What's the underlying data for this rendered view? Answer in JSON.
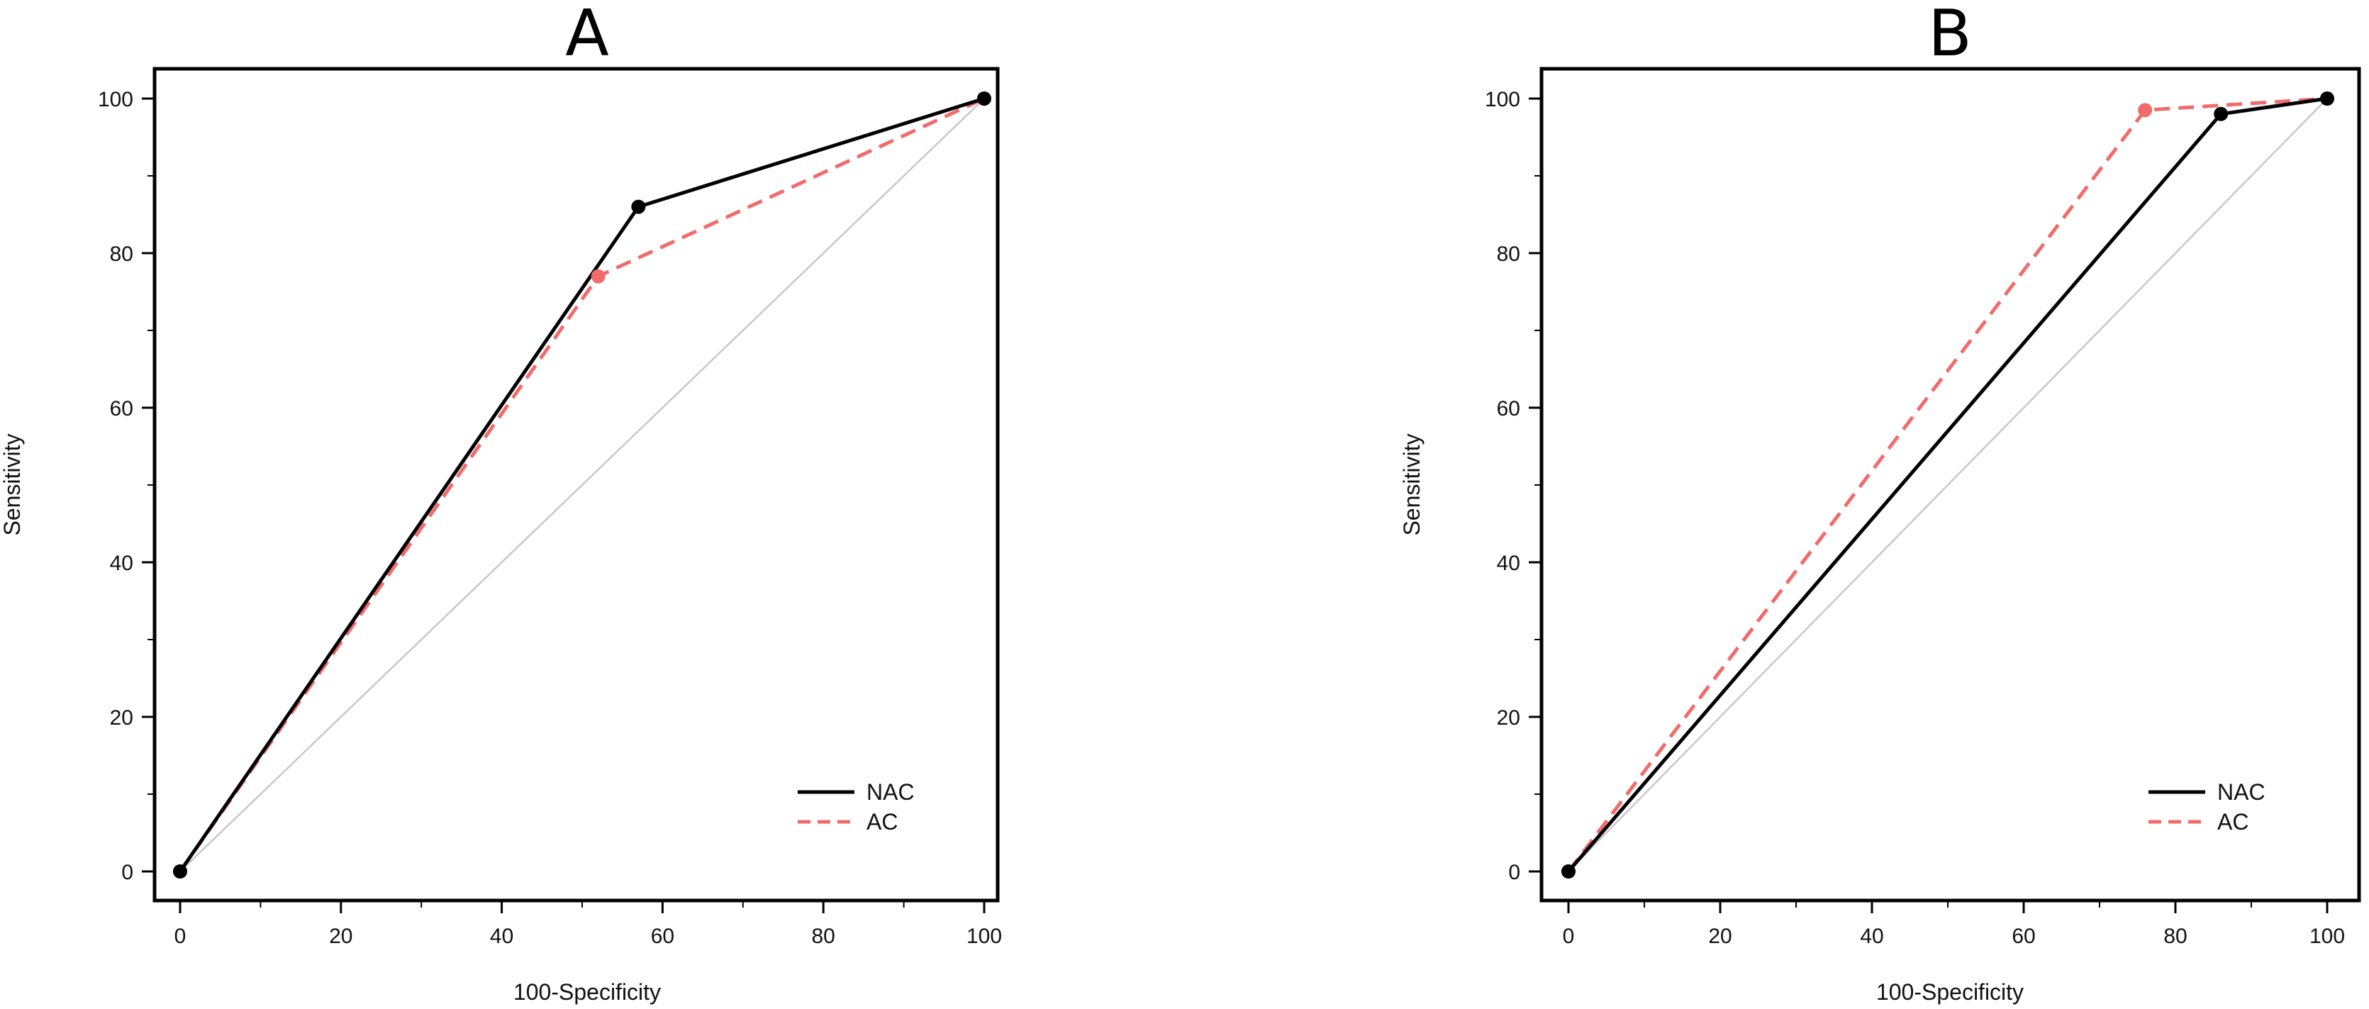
{
  "chart_data": [
    {
      "type": "line",
      "title": "A",
      "xlabel": "100-Specificity",
      "ylabel": "Sensitivity",
      "xlim": [
        0,
        100
      ],
      "ylim": [
        0,
        100
      ],
      "x_ticks": [
        0,
        20,
        40,
        60,
        80,
        100
      ],
      "y_ticks": [
        0,
        20,
        40,
        60,
        80,
        100
      ],
      "grid": false,
      "legend_position": "bottom-right",
      "reference_line": {
        "x": [
          0,
          100
        ],
        "y": [
          0,
          100
        ],
        "color": "#c8c8c8"
      },
      "series": [
        {
          "name": "NAC",
          "color": "#000000",
          "style": "solid",
          "x": [
            0,
            57,
            100
          ],
          "y": [
            0,
            86,
            100
          ]
        },
        {
          "name": "AC",
          "color": "#f26b6b",
          "style": "dashed",
          "x": [
            0,
            52,
            100
          ],
          "y": [
            0,
            77,
            100
          ]
        }
      ]
    },
    {
      "type": "line",
      "title": "B",
      "xlabel": "100-Specificity",
      "ylabel": "Sensitivity",
      "xlim": [
        0,
        100
      ],
      "ylim": [
        0,
        100
      ],
      "x_ticks": [
        0,
        20,
        40,
        60,
        80,
        100
      ],
      "y_ticks": [
        0,
        20,
        40,
        60,
        80,
        100
      ],
      "grid": false,
      "legend_position": "bottom-right",
      "reference_line": {
        "x": [
          0,
          100
        ],
        "y": [
          0,
          100
        ],
        "color": "#c8c8c8"
      },
      "series": [
        {
          "name": "NAC",
          "color": "#000000",
          "style": "solid",
          "x": [
            0,
            86,
            100
          ],
          "y": [
            0,
            98,
            100
          ]
        },
        {
          "name": "AC",
          "color": "#f26b6b",
          "style": "dashed",
          "x": [
            0,
            76,
            100
          ],
          "y": [
            0,
            98.5,
            100
          ]
        }
      ]
    }
  ]
}
